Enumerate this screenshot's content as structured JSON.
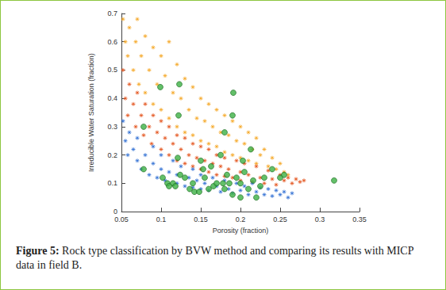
{
  "chart_data": {
    "type": "scatter",
    "xlabel": "Porosity (fraction)",
    "ylabel": "Irreducible Water Saturation (fraction)",
    "caption_label": "Figure 5:",
    "caption": "Rock type classification by BVW method and comparing its results with MICP data in field B.",
    "xlim": [
      0.05,
      0.35
    ],
    "xticks": [
      0.05,
      0.1,
      0.15,
      0.2,
      0.25,
      0.3,
      0.35
    ],
    "ylim": [
      0,
      0.7
    ],
    "yticks": [
      0,
      0.1,
      0.2,
      0.3,
      0.4,
      0.5,
      0.6,
      0.7
    ],
    "grid": false,
    "series": [
      {
        "color": "#f5a623",
        "marker": "asterisk",
        "x": [
          0.052,
          0.055,
          0.058,
          0.06,
          0.065,
          0.068,
          0.07,
          0.072,
          0.075,
          0.08,
          0.08,
          0.085,
          0.09,
          0.09,
          0.095,
          0.1,
          0.1,
          0.105,
          0.11,
          0.11,
          0.115,
          0.12,
          0.12,
          0.125,
          0.13,
          0.13,
          0.135,
          0.14,
          0.14,
          0.145,
          0.15,
          0.15,
          0.155,
          0.16,
          0.16,
          0.165,
          0.17,
          0.17,
          0.175,
          0.18,
          0.18,
          0.185,
          0.19,
          0.19,
          0.195,
          0.2,
          0.2,
          0.205,
          0.21,
          0.21,
          0.215,
          0.22,
          0.22,
          0.225,
          0.23,
          0.235,
          0.24,
          0.245,
          0.25,
          0.255,
          0.26
        ],
        "values": [
          0.68,
          0.6,
          0.55,
          0.65,
          0.5,
          0.6,
          0.68,
          0.45,
          0.55,
          0.62,
          0.42,
          0.5,
          0.58,
          0.38,
          0.45,
          0.55,
          0.36,
          0.48,
          0.6,
          0.33,
          0.42,
          0.52,
          0.3,
          0.4,
          0.47,
          0.28,
          0.36,
          0.44,
          0.27,
          0.33,
          0.4,
          0.25,
          0.32,
          0.38,
          0.24,
          0.3,
          0.36,
          0.23,
          0.28,
          0.34,
          0.21,
          0.27,
          0.32,
          0.2,
          0.25,
          0.3,
          0.19,
          0.24,
          0.28,
          0.18,
          0.22,
          0.26,
          0.17,
          0.2,
          0.22,
          0.16,
          0.19,
          0.15,
          0.17,
          0.14,
          0.13
        ]
      },
      {
        "color": "#e4531b",
        "marker": "asterisk",
        "x": [
          0.052,
          0.055,
          0.058,
          0.06,
          0.065,
          0.068,
          0.07,
          0.075,
          0.078,
          0.08,
          0.085,
          0.088,
          0.09,
          0.095,
          0.1,
          0.1,
          0.105,
          0.11,
          0.11,
          0.115,
          0.12,
          0.12,
          0.125,
          0.13,
          0.13,
          0.135,
          0.14,
          0.14,
          0.145,
          0.15,
          0.15,
          0.155,
          0.16,
          0.16,
          0.165,
          0.17,
          0.17,
          0.175,
          0.18,
          0.18,
          0.185,
          0.19,
          0.195,
          0.2,
          0.2,
          0.205,
          0.21,
          0.215,
          0.22,
          0.225,
          0.23,
          0.235,
          0.24,
          0.245,
          0.25,
          0.255,
          0.26,
          0.265,
          0.27,
          0.275,
          0.28
        ],
        "values": [
          0.5,
          0.4,
          0.34,
          0.45,
          0.38,
          0.3,
          0.42,
          0.34,
          0.27,
          0.38,
          0.3,
          0.24,
          0.34,
          0.28,
          0.22,
          0.32,
          0.26,
          0.2,
          0.3,
          0.24,
          0.18,
          0.27,
          0.22,
          0.17,
          0.26,
          0.2,
          0.16,
          0.24,
          0.19,
          0.15,
          0.23,
          0.18,
          0.14,
          0.22,
          0.17,
          0.13,
          0.2,
          0.16,
          0.125,
          0.19,
          0.15,
          0.12,
          0.18,
          0.14,
          0.11,
          0.17,
          0.13,
          0.105,
          0.16,
          0.12,
          0.1,
          0.145,
          0.115,
          0.095,
          0.13,
          0.11,
          0.12,
          0.1,
          0.115,
          0.105,
          0.11
        ]
      },
      {
        "color": "#2f6fd3",
        "marker": "asterisk",
        "x": [
          0.052,
          0.055,
          0.058,
          0.06,
          0.065,
          0.07,
          0.07,
          0.075,
          0.08,
          0.085,
          0.09,
          0.09,
          0.095,
          0.1,
          0.1,
          0.105,
          0.11,
          0.115,
          0.12,
          0.12,
          0.125,
          0.13,
          0.135,
          0.14,
          0.14,
          0.145,
          0.15,
          0.15,
          0.155,
          0.16,
          0.165,
          0.17,
          0.175,
          0.18,
          0.185,
          0.19,
          0.195,
          0.2,
          0.205,
          0.21,
          0.215,
          0.22,
          0.225,
          0.23,
          0.235,
          0.24,
          0.245,
          0.25,
          0.255,
          0.26,
          0.265
        ],
        "values": [
          0.32,
          0.25,
          0.2,
          0.28,
          0.22,
          0.18,
          0.26,
          0.15,
          0.2,
          0.13,
          0.17,
          0.23,
          0.12,
          0.15,
          0.2,
          0.11,
          0.14,
          0.18,
          0.1,
          0.13,
          0.16,
          0.09,
          0.12,
          0.15,
          0.085,
          0.11,
          0.08,
          0.13,
          0.1,
          0.075,
          0.12,
          0.09,
          0.07,
          0.11,
          0.08,
          0.065,
          0.1,
          0.075,
          0.09,
          0.06,
          0.1,
          0.07,
          0.085,
          0.06,
          0.08,
          0.055,
          0.075,
          0.06,
          0.07,
          0.05,
          0.065
        ]
      },
      {
        "color": "#3cb043",
        "marker": "circle",
        "x": [
          0.078,
          0.078,
          0.099,
          0.123,
          0.122,
          0.191,
          0.19,
          0.18,
          0.102,
          0.108,
          0.115,
          0.118,
          0.121,
          0.124,
          0.13,
          0.136,
          0.14,
          0.142,
          0.148,
          0.15,
          0.153,
          0.155,
          0.16,
          0.163,
          0.166,
          0.17,
          0.175,
          0.178,
          0.18,
          0.183,
          0.186,
          0.19,
          0.195,
          0.2,
          0.203,
          0.205,
          0.21,
          0.213,
          0.216,
          0.22,
          0.225,
          0.23,
          0.24,
          0.25,
          0.255,
          0.318,
          0.11,
          0.2
        ],
        "values": [
          0.3,
          0.15,
          0.44,
          0.45,
          0.34,
          0.42,
          0.34,
          0.28,
          0.12,
          0.1,
          0.1,
          0.09,
          0.19,
          0.13,
          0.12,
          0.08,
          0.1,
          0.07,
          0.07,
          0.18,
          0.15,
          0.12,
          0.08,
          0.16,
          0.09,
          0.1,
          0.2,
          0.1,
          0.08,
          0.13,
          0.1,
          0.06,
          0.12,
          0.1,
          0.18,
          0.14,
          0.08,
          0.22,
          0.11,
          0.05,
          0.09,
          0.12,
          0.15,
          0.12,
          0.13,
          0.11,
          0.09,
          0.05
        ]
      }
    ]
  }
}
